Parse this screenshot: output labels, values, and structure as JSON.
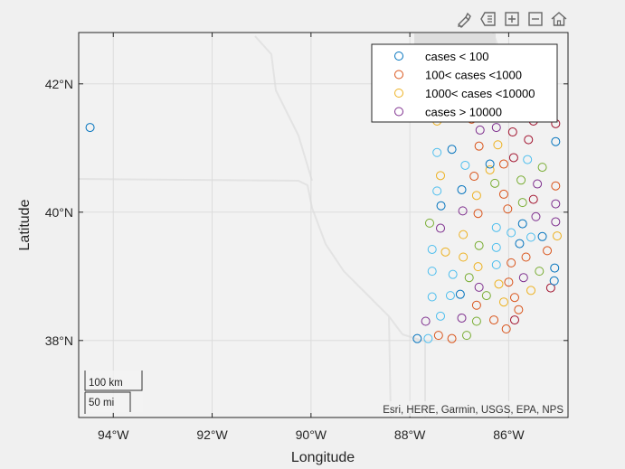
{
  "toolbar": {
    "icons": [
      "brush-icon",
      "data-tips-icon",
      "zoom-in-icon",
      "zoom-out-icon",
      "home-icon"
    ]
  },
  "map": {
    "xlabel": "Longitude",
    "ylabel": "Latitude",
    "attribution": "Esri, HERE, Garmin, USGS, EPA, NPS",
    "scalebar": {
      "km_label": "100 km",
      "mi_label": "50 mi"
    },
    "colors": {
      "background": "#f0f0f0",
      "basemap": "#f2f2f2",
      "grid": "#dddddd",
      "axis": "#262626",
      "lt100": "#0072BD",
      "lt1000": "#D95319",
      "lt10000": "#EDB120",
      "gt10000": "#7E2F8E",
      "extra_teal": "#4DBEEE",
      "extra_green": "#77AC30",
      "extra_red": "#A2142F"
    }
  },
  "chart_data": {
    "type": "scatter",
    "title": "",
    "xlabel": "Longitude",
    "ylabel": "Latitude",
    "xlim": [
      -94.7,
      -84.8
    ],
    "ylim": [
      36.8,
      42.8
    ],
    "xticks": [
      {
        "value": -94,
        "label": "94°W"
      },
      {
        "value": -92,
        "label": "92°W"
      },
      {
        "value": -90,
        "label": "90°W"
      },
      {
        "value": -88,
        "label": "88°W"
      },
      {
        "value": -86,
        "label": "86°W"
      }
    ],
    "yticks": [
      {
        "value": 38,
        "label": "38°N"
      },
      {
        "value": 40,
        "label": "40°N"
      },
      {
        "value": 42,
        "label": "42°N"
      }
    ],
    "grid": true,
    "legend": {
      "position": "top-right",
      "entries": [
        {
          "label": " cases < 100",
          "color": "#0072BD"
        },
        {
          "label": "100< cases <1000",
          "color": "#D95319"
        },
        {
          "label": "1000< cases <10000",
          "color": "#EDB120"
        },
        {
          "label": "cases > 10000",
          "color": "#7E2F8E"
        }
      ]
    },
    "points": [
      {
        "lon": -94.47,
        "lat": 41.32,
        "color": "#0072BD"
      },
      {
        "lon": -87.85,
        "lat": 38.03,
        "color": "#0072BD"
      },
      {
        "lon": -87.63,
        "lat": 38.03,
        "color": "#4DBEEE"
      },
      {
        "lon": -87.42,
        "lat": 38.08,
        "color": "#D95319"
      },
      {
        "lon": -87.15,
        "lat": 38.03,
        "color": "#D95319"
      },
      {
        "lon": -86.85,
        "lat": 38.08,
        "color": "#77AC30"
      },
      {
        "lon": -87.68,
        "lat": 38.3,
        "color": "#7E2F8E"
      },
      {
        "lon": -87.38,
        "lat": 38.38,
        "color": "#4DBEEE"
      },
      {
        "lon": -86.95,
        "lat": 38.35,
        "color": "#7E2F8E"
      },
      {
        "lon": -86.65,
        "lat": 38.3,
        "color": "#77AC30"
      },
      {
        "lon": -86.3,
        "lat": 38.32,
        "color": "#D95319"
      },
      {
        "lon": -86.05,
        "lat": 38.18,
        "color": "#D95319"
      },
      {
        "lon": -85.88,
        "lat": 38.32,
        "color": "#A2142F"
      },
      {
        "lon": -87.55,
        "lat": 38.68,
        "color": "#4DBEEE"
      },
      {
        "lon": -87.18,
        "lat": 38.7,
        "color": "#4DBEEE"
      },
      {
        "lon": -86.98,
        "lat": 38.72,
        "color": "#0072BD"
      },
      {
        "lon": -86.65,
        "lat": 38.55,
        "color": "#D95319"
      },
      {
        "lon": -86.45,
        "lat": 38.7,
        "color": "#77AC30"
      },
      {
        "lon": -86.1,
        "lat": 38.6,
        "color": "#EDB120"
      },
      {
        "lon": -85.88,
        "lat": 38.67,
        "color": "#D95319"
      },
      {
        "lon": -85.8,
        "lat": 38.48,
        "color": "#D95319"
      },
      {
        "lon": -85.55,
        "lat": 38.78,
        "color": "#EDB120"
      },
      {
        "lon": -85.15,
        "lat": 38.82,
        "color": "#A2142F"
      },
      {
        "lon": -87.55,
        "lat": 39.08,
        "color": "#4DBEEE"
      },
      {
        "lon": -87.13,
        "lat": 39.03,
        "color": "#4DBEEE"
      },
      {
        "lon": -86.8,
        "lat": 38.98,
        "color": "#77AC30"
      },
      {
        "lon": -86.6,
        "lat": 38.83,
        "color": "#7E2F8E"
      },
      {
        "lon": -86.2,
        "lat": 38.88,
        "color": "#EDB120"
      },
      {
        "lon": -86.0,
        "lat": 38.91,
        "color": "#D95319"
      },
      {
        "lon": -85.7,
        "lat": 38.98,
        "color": "#7E2F8E"
      },
      {
        "lon": -85.38,
        "lat": 39.08,
        "color": "#77AC30"
      },
      {
        "lon": -85.08,
        "lat": 38.93,
        "color": "#0072BD"
      },
      {
        "lon": -85.07,
        "lat": 39.13,
        "color": "#0072BD"
      },
      {
        "lon": -87.55,
        "lat": 39.42,
        "color": "#4DBEEE"
      },
      {
        "lon": -87.28,
        "lat": 39.38,
        "color": "#EDB120"
      },
      {
        "lon": -86.92,
        "lat": 39.3,
        "color": "#EDB120"
      },
      {
        "lon": -86.62,
        "lat": 39.15,
        "color": "#EDB120"
      },
      {
        "lon": -86.25,
        "lat": 39.18,
        "color": "#4DBEEE"
      },
      {
        "lon": -85.95,
        "lat": 39.21,
        "color": "#D95319"
      },
      {
        "lon": -85.65,
        "lat": 39.3,
        "color": "#D95319"
      },
      {
        "lon": -85.22,
        "lat": 39.4,
        "color": "#D95319"
      },
      {
        "lon": -87.6,
        "lat": 39.83,
        "color": "#77AC30"
      },
      {
        "lon": -87.38,
        "lat": 39.75,
        "color": "#7E2F8E"
      },
      {
        "lon": -86.92,
        "lat": 39.65,
        "color": "#EDB120"
      },
      {
        "lon": -86.6,
        "lat": 39.48,
        "color": "#77AC30"
      },
      {
        "lon": -86.25,
        "lat": 39.45,
        "color": "#4DBEEE"
      },
      {
        "lon": -85.78,
        "lat": 39.51,
        "color": "#0072BD"
      },
      {
        "lon": -85.55,
        "lat": 39.61,
        "color": "#4DBEEE"
      },
      {
        "lon": -85.32,
        "lat": 39.62,
        "color": "#0072BD"
      },
      {
        "lon": -85.02,
        "lat": 39.63,
        "color": "#EDB120"
      },
      {
        "lon": -87.37,
        "lat": 40.1,
        "color": "#0072BD"
      },
      {
        "lon": -86.93,
        "lat": 40.02,
        "color": "#7E2F8E"
      },
      {
        "lon": -86.62,
        "lat": 39.98,
        "color": "#D95319"
      },
      {
        "lon": -86.25,
        "lat": 39.76,
        "color": "#4DBEEE"
      },
      {
        "lon": -85.95,
        "lat": 39.68,
        "color": "#4DBEEE"
      },
      {
        "lon": -85.72,
        "lat": 39.82,
        "color": "#0072BD"
      },
      {
        "lon": -85.45,
        "lat": 39.93,
        "color": "#7E2F8E"
      },
      {
        "lon": -85.05,
        "lat": 39.85,
        "color": "#7E2F8E"
      },
      {
        "lon": -87.45,
        "lat": 40.33,
        "color": "#4DBEEE"
      },
      {
        "lon": -86.95,
        "lat": 40.35,
        "color": "#0072BD"
      },
      {
        "lon": -86.65,
        "lat": 40.26,
        "color": "#EDB120"
      },
      {
        "lon": -86.28,
        "lat": 40.45,
        "color": "#77AC30"
      },
      {
        "lon": -86.1,
        "lat": 40.28,
        "color": "#D95319"
      },
      {
        "lon": -86.02,
        "lat": 40.05,
        "color": "#D95319"
      },
      {
        "lon": -85.72,
        "lat": 40.15,
        "color": "#77AC30"
      },
      {
        "lon": -85.5,
        "lat": 40.2,
        "color": "#A2142F"
      },
      {
        "lon": -85.05,
        "lat": 40.13,
        "color": "#7E2F8E"
      },
      {
        "lon": -87.38,
        "lat": 40.57,
        "color": "#EDB120"
      },
      {
        "lon": -86.7,
        "lat": 40.56,
        "color": "#D95319"
      },
      {
        "lon": -86.38,
        "lat": 40.66,
        "color": "#EDB120"
      },
      {
        "lon": -86.1,
        "lat": 40.75,
        "color": "#D95319"
      },
      {
        "lon": -85.75,
        "lat": 40.5,
        "color": "#77AC30"
      },
      {
        "lon": -85.42,
        "lat": 40.44,
        "color": "#7E2F8E"
      },
      {
        "lon": -85.05,
        "lat": 40.41,
        "color": "#D95319"
      },
      {
        "lon": -87.45,
        "lat": 40.93,
        "color": "#4DBEEE"
      },
      {
        "lon": -87.15,
        "lat": 40.98,
        "color": "#0072BD"
      },
      {
        "lon": -86.88,
        "lat": 40.73,
        "color": "#4DBEEE"
      },
      {
        "lon": -86.6,
        "lat": 41.03,
        "color": "#D95319"
      },
      {
        "lon": -86.38,
        "lat": 40.75,
        "color": "#0072BD"
      },
      {
        "lon": -86.22,
        "lat": 41.05,
        "color": "#EDB120"
      },
      {
        "lon": -85.9,
        "lat": 40.85,
        "color": "#A2142F"
      },
      {
        "lon": -85.62,
        "lat": 40.82,
        "color": "#4DBEEE"
      },
      {
        "lon": -85.32,
        "lat": 40.7,
        "color": "#77AC30"
      },
      {
        "lon": -85.05,
        "lat": 41.1,
        "color": "#0072BD"
      },
      {
        "lon": -87.45,
        "lat": 41.42,
        "color": "#EDB120"
      },
      {
        "lon": -87.1,
        "lat": 41.48,
        "color": "#A2142F"
      },
      {
        "lon": -86.75,
        "lat": 41.45,
        "color": "#D95319"
      },
      {
        "lon": -86.58,
        "lat": 41.28,
        "color": "#7E2F8E"
      },
      {
        "lon": -86.25,
        "lat": 41.32,
        "color": "#7E2F8E"
      },
      {
        "lon": -85.92,
        "lat": 41.25,
        "color": "#A2142F"
      },
      {
        "lon": -85.6,
        "lat": 41.13,
        "color": "#A2142F"
      },
      {
        "lon": -85.5,
        "lat": 41.42,
        "color": "#A2142F"
      },
      {
        "lon": -85.05,
        "lat": 41.38,
        "color": "#A2142F"
      }
    ]
  }
}
